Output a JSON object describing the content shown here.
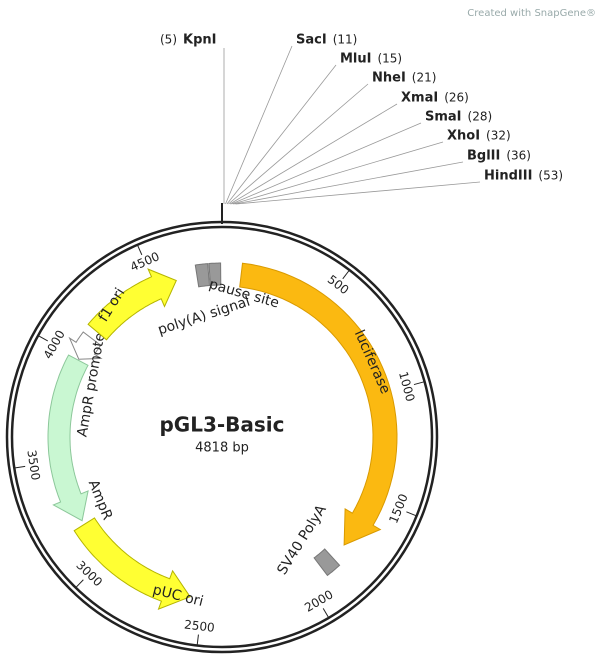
{
  "watermark": "Created with SnapGene®",
  "title": "pGL3-Basic",
  "size": "4818 bp",
  "sites": [
    {
      "position": "(5)",
      "name": "KpnI"
    },
    {
      "name": "SacI",
      "position": "(11)"
    },
    {
      "name": "MluI",
      "position": "(15)"
    },
    {
      "name": "NheI",
      "position": "(21)"
    },
    {
      "name": "XmaI",
      "position": "(26)"
    },
    {
      "name": "SmaI",
      "position": "(28)"
    },
    {
      "name": "XhoI",
      "position": "(32)"
    },
    {
      "name": "BglII",
      "position": "(36)"
    },
    {
      "name": "HindIII",
      "position": "(53)"
    }
  ],
  "features": [
    {
      "label": "luciferase"
    },
    {
      "label": "SV40 PolyA"
    },
    {
      "label": "pUC ori"
    },
    {
      "label": "AmpR"
    },
    {
      "label": "AmpR promoter"
    },
    {
      "label": "f1 ori"
    },
    {
      "label": "poly(A) signal"
    },
    {
      "label": "pause site"
    }
  ],
  "ticks": [
    "500",
    "1000",
    "1500",
    "2000",
    "2500",
    "3000",
    "3500",
    "4000",
    "4500"
  ]
}
